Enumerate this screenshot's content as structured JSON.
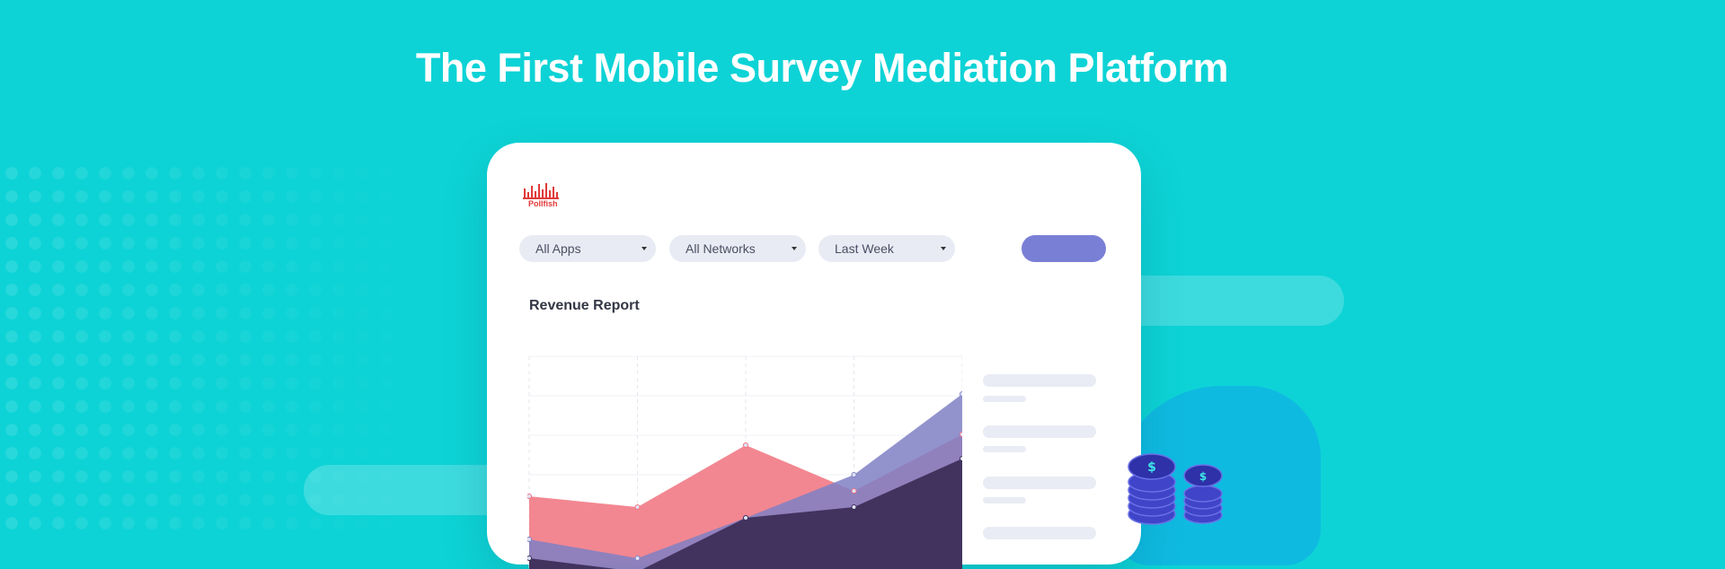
{
  "headline": "The First Mobile Survey Mediation Platform",
  "brand": {
    "name": "Pollfish",
    "color": "#e23a3a"
  },
  "filters": [
    {
      "label": "All Apps"
    },
    {
      "label": "All Networks"
    },
    {
      "label": "Last Week"
    }
  ],
  "primary_button": {
    "label": "",
    "color": "#7a7fd6"
  },
  "report": {
    "title": "Revenue Report"
  },
  "chart_data": {
    "type": "area",
    "x": [
      1,
      2,
      3,
      4,
      5
    ],
    "series": [
      {
        "values": [
          48,
          44,
          67,
          50,
          71
        ],
        "color": "#f0727e"
      },
      {
        "values": [
          32,
          25,
          40,
          56,
          86
        ],
        "color": "#7f80c4"
      },
      {
        "values": [
          25,
          20,
          40,
          44,
          62
        ],
        "color": "#3b2d56"
      }
    ],
    "ylim": [
      0,
      100
    ],
    "grid": true
  },
  "colors": {
    "background": "#0dd3d6",
    "accent": "#7a7fd6",
    "coin": "#3f44c8"
  }
}
